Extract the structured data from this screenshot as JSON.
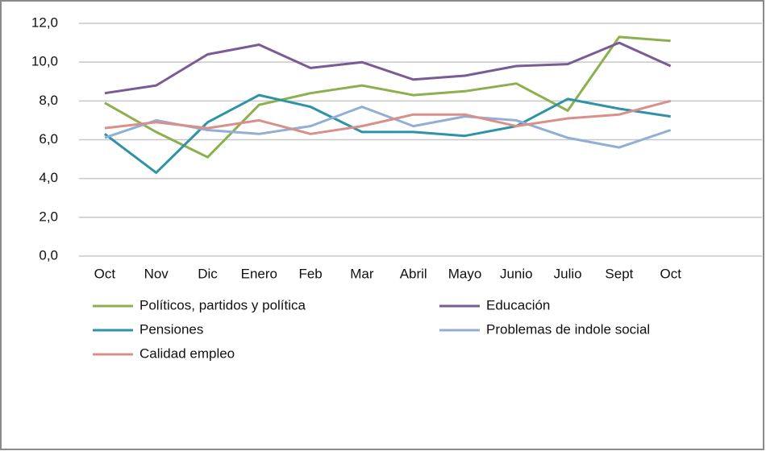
{
  "chart_data": {
    "type": "line",
    "categories": [
      "Oct",
      "Nov",
      "Dic",
      "Enero",
      "Feb",
      "Mar",
      "Abril",
      "Mayo",
      "Junio",
      "Julio",
      "Sept",
      "Oct"
    ],
    "series": [
      {
        "name": "Políticos, partidos y política",
        "color": "#8db04f",
        "values": [
          7.9,
          6.4,
          5.1,
          7.8,
          8.4,
          8.8,
          8.3,
          8.5,
          8.9,
          7.5,
          11.3,
          11.1
        ]
      },
      {
        "name": "Educación",
        "color": "#7a5b96",
        "values": [
          8.4,
          8.8,
          10.4,
          10.9,
          9.7,
          10.0,
          9.1,
          9.3,
          9.8,
          9.9,
          11.0,
          9.8
        ]
      },
      {
        "name": "Pensiones",
        "color": "#2f93a8",
        "values": [
          6.3,
          4.3,
          6.9,
          8.3,
          7.7,
          6.4,
          6.4,
          6.2,
          6.7,
          8.1,
          7.6,
          7.2
        ]
      },
      {
        "name": "Problemas de indole social",
        "color": "#93aed6",
        "values": [
          6.1,
          7.0,
          6.5,
          6.3,
          6.7,
          7.7,
          6.7,
          7.2,
          7.0,
          6.1,
          5.6,
          6.5
        ]
      },
      {
        "name": "Calidad empleo",
        "color": "#d9908a",
        "values": [
          6.6,
          6.9,
          6.6,
          7.0,
          6.3,
          6.7,
          7.3,
          7.3,
          6.7,
          7.1,
          7.3,
          8.0
        ]
      }
    ],
    "ylim": [
      0,
      12
    ],
    "yticks": [
      {
        "value": 0,
        "label": "0,0"
      },
      {
        "value": 2,
        "label": "2,0"
      },
      {
        "value": 4,
        "label": "4,0"
      },
      {
        "value": 6,
        "label": "6,0"
      },
      {
        "value": 8,
        "label": "8,0"
      },
      {
        "value": 10,
        "label": "10,0"
      },
      {
        "value": 12,
        "label": "12,0"
      }
    ],
    "grid": true,
    "legend": "bottom"
  }
}
